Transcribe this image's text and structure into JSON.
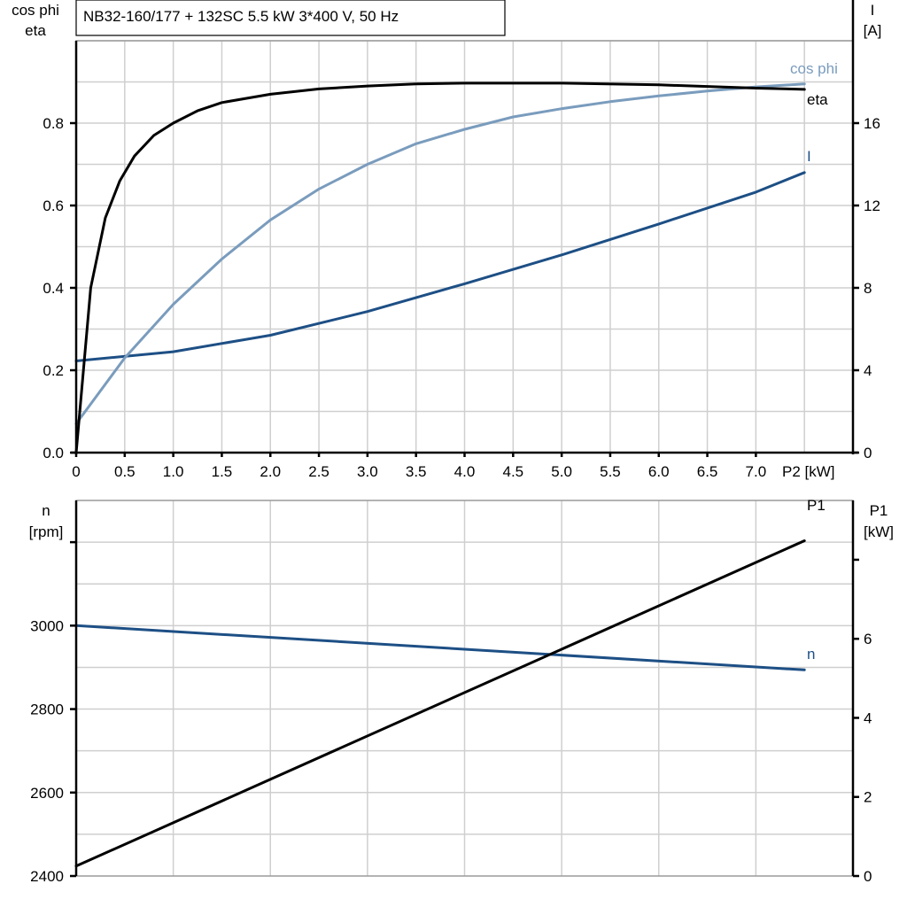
{
  "title": "NB32-160/177 + 132SC   5.5 kW   3*400 V, 50 Hz",
  "colors": {
    "eta": "#000000",
    "cos_phi": "#7a9cbd",
    "I": "#1d4f85",
    "n": "#1d4f85",
    "P1": "#000000"
  },
  "chart_data": [
    {
      "type": "line",
      "grid": true,
      "xlabel": "P2 [kW]",
      "xlim": [
        0,
        8
      ],
      "x_ticks": [
        "0",
        "0.5",
        "1.0",
        "1.5",
        "2.0",
        "2.5",
        "3.0",
        "3.5",
        "4.0",
        "4.5",
        "5.0",
        "5.5",
        "6.0",
        "6.5",
        "7.0"
      ],
      "ylabel_left": [
        "cos phi",
        "eta"
      ],
      "ylim_left": [
        0,
        1.0
      ],
      "y_ticks_left": [
        "0.0",
        "0.2",
        "0.4",
        "0.6",
        "0.8"
      ],
      "ylabel_right": [
        "I",
        "[A]"
      ],
      "ylim_right": [
        0,
        20
      ],
      "y_ticks_right": [
        "0",
        "4",
        "8",
        "12",
        "16"
      ],
      "series": [
        {
          "name": "eta",
          "axis": "left",
          "x": [
            0,
            0.15,
            0.3,
            0.45,
            0.6,
            0.8,
            1.0,
            1.25,
            1.5,
            2.0,
            2.5,
            3.0,
            3.5,
            4.0,
            5.0,
            6.0,
            7.0,
            7.5
          ],
          "y": [
            0,
            0.4,
            0.57,
            0.66,
            0.72,
            0.77,
            0.8,
            0.83,
            0.85,
            0.87,
            0.883,
            0.89,
            0.895,
            0.897,
            0.897,
            0.893,
            0.885,
            0.882
          ]
        },
        {
          "name": "cos phi",
          "axis": "left",
          "x": [
            0,
            0.5,
            1.0,
            1.5,
            2.0,
            2.5,
            3.0,
            3.5,
            4.0,
            4.5,
            5.0,
            5.5,
            6.0,
            6.5,
            7.0,
            7.5
          ],
          "y": [
            0.07,
            0.23,
            0.36,
            0.47,
            0.565,
            0.64,
            0.7,
            0.75,
            0.785,
            0.815,
            0.835,
            0.852,
            0.866,
            0.878,
            0.888,
            0.895
          ]
        },
        {
          "name": "I",
          "axis": "right",
          "x": [
            0,
            1,
            2,
            3,
            4,
            5,
            6,
            7,
            7.5
          ],
          "y": [
            4.45,
            4.9,
            5.7,
            6.85,
            8.2,
            9.6,
            11.1,
            12.65,
            13.6
          ]
        }
      ]
    },
    {
      "type": "line",
      "grid": true,
      "xlim": [
        0,
        8
      ],
      "ylabel_left": [
        "n",
        "[rpm]"
      ],
      "ylim_left": [
        2400,
        3300
      ],
      "y_ticks_left": [
        "2400",
        "2600",
        "2800",
        "3000"
      ],
      "ylabel_right": [
        "P1",
        "[kW]"
      ],
      "ylim_right": [
        0,
        9.5
      ],
      "y_ticks_right": [
        "0",
        "2",
        "4",
        "6"
      ],
      "series": [
        {
          "name": "n",
          "axis": "left",
          "x": [
            0,
            7.5
          ],
          "y": [
            3000,
            2894
          ]
        },
        {
          "name": "P1",
          "axis": "right",
          "x": [
            0,
            7.5
          ],
          "y": [
            0.25,
            8.48
          ]
        }
      ]
    }
  ]
}
